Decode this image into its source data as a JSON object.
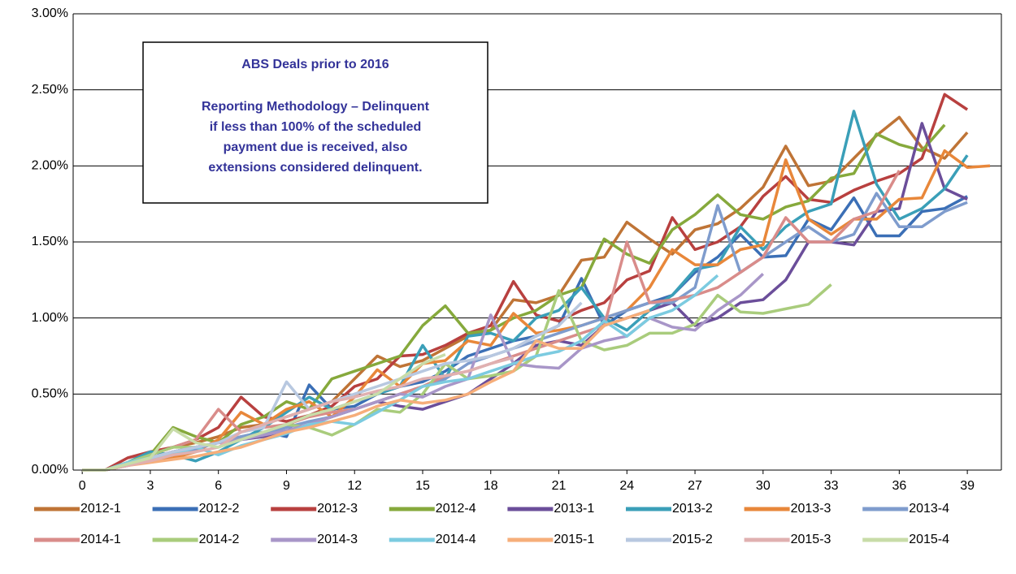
{
  "chart_data": {
    "type": "line",
    "annotation": {
      "title": "ABS Deals prior to 2016",
      "lines": [
        "Reporting Methodology – Delinquent",
        "if less than 100% of the scheduled",
        "payment due is received, also",
        "extensions considered delinquent."
      ]
    },
    "x": [
      0,
      1,
      2,
      3,
      4,
      5,
      6,
      7,
      8,
      9,
      10,
      11,
      12,
      13,
      14,
      15,
      16,
      17,
      18,
      19,
      20,
      21,
      22,
      23,
      24,
      25,
      26,
      27,
      28,
      29,
      30,
      31,
      32,
      33,
      34,
      35,
      36,
      37,
      38,
      39,
      40
    ],
    "xlim": [
      -0.4,
      40.5
    ],
    "xticks": [
      0,
      3,
      6,
      9,
      12,
      15,
      18,
      21,
      24,
      27,
      30,
      33,
      36,
      39
    ],
    "ylim": [
      0,
      3
    ],
    "yticks": [
      {
        "value": 0,
        "label": "0.00%"
      },
      {
        "value": 0.5,
        "label": "0.50%"
      },
      {
        "value": 1,
        "label": "1.00%"
      },
      {
        "value": 1.5,
        "label": "1.50%"
      },
      {
        "value": 2,
        "label": "2.00%"
      },
      {
        "value": 2.5,
        "label": "2.50%"
      },
      {
        "value": 3,
        "label": "3.00%"
      }
    ],
    "grid": true,
    "series": [
      {
        "name": "2012-1",
        "color": "#bf7436",
        "values": [
          0,
          0,
          0.05,
          0.1,
          0.15,
          0.18,
          0.22,
          0.28,
          0.3,
          0.35,
          0.4,
          0.45,
          0.6,
          0.75,
          0.68,
          0.72,
          0.8,
          0.88,
          0.92,
          1.12,
          1.1,
          1.15,
          1.38,
          1.4,
          1.63,
          1.52,
          1.42,
          1.58,
          1.62,
          1.72,
          1.86,
          2.13,
          1.87,
          1.9,
          2.05,
          2.2,
          2.32,
          2.12,
          2.05,
          2.22,
          null
        ]
      },
      {
        "name": "2012-2",
        "color": "#3b6fb6",
        "values": [
          0,
          0,
          0.04,
          0.08,
          0.12,
          0.15,
          0.18,
          0.22,
          0.25,
          0.22,
          0.56,
          0.4,
          0.42,
          0.5,
          0.55,
          0.58,
          0.65,
          0.75,
          0.8,
          0.85,
          0.88,
          0.95,
          1.26,
          0.95,
          1.05,
          1.1,
          1.15,
          1.3,
          1.4,
          1.55,
          1.4,
          1.41,
          1.65,
          1.58,
          1.79,
          1.54,
          1.54,
          1.7,
          1.72,
          1.8,
          null
        ]
      },
      {
        "name": "2012-3",
        "color": "#b8403f",
        "values": [
          0,
          0,
          0.08,
          0.12,
          0.15,
          0.2,
          0.28,
          0.48,
          0.35,
          0.32,
          0.36,
          0.42,
          0.55,
          0.6,
          0.75,
          0.76,
          0.82,
          0.9,
          0.95,
          1.24,
          1.02,
          0.98,
          1.05,
          1.1,
          1.25,
          1.31,
          1.66,
          1.45,
          1.5,
          1.6,
          1.8,
          1.93,
          1.78,
          1.76,
          1.84,
          1.9,
          1.95,
          2.05,
          2.47,
          2.37,
          null
        ]
      },
      {
        "name": "2012-4",
        "color": "#86a93c",
        "values": [
          0,
          0,
          0.05,
          0.1,
          0.28,
          0.22,
          0.18,
          0.3,
          0.35,
          0.45,
          0.4,
          0.6,
          0.65,
          0.7,
          0.75,
          0.95,
          1.08,
          0.9,
          0.92,
          1.0,
          1.05,
          1.15,
          1.2,
          1.52,
          1.42,
          1.36,
          1.58,
          1.68,
          1.81,
          1.68,
          1.65,
          1.73,
          1.77,
          1.92,
          1.95,
          2.21,
          2.14,
          2.1,
          2.27,
          null,
          null
        ]
      },
      {
        "name": "2013-1",
        "color": "#6b4e9a",
        "values": [
          0,
          0,
          0.03,
          0.08,
          0.12,
          0.15,
          0.18,
          0.2,
          0.22,
          0.25,
          0.3,
          0.35,
          0.4,
          0.45,
          0.42,
          0.4,
          0.45,
          0.5,
          0.6,
          0.7,
          0.82,
          0.85,
          0.82,
          0.95,
          1.0,
          1.05,
          1.1,
          0.95,
          1.0,
          1.1,
          1.12,
          1.25,
          1.5,
          1.5,
          1.48,
          1.7,
          1.72,
          2.28,
          1.85,
          1.78,
          null
        ]
      },
      {
        "name": "2013-2",
        "color": "#3a9fb8",
        "values": [
          0,
          0,
          0.05,
          0.12,
          0.1,
          0.06,
          0.12,
          0.2,
          0.28,
          0.38,
          0.48,
          0.4,
          0.45,
          0.5,
          0.55,
          0.82,
          0.6,
          0.88,
          0.9,
          0.85,
          1.0,
          1.05,
          1.2,
          1.0,
          0.92,
          1.05,
          1.15,
          1.32,
          1.35,
          1.6,
          1.45,
          1.6,
          1.7,
          1.75,
          2.36,
          1.88,
          1.65,
          1.72,
          1.85,
          2.07,
          null
        ]
      },
      {
        "name": "2013-3",
        "color": "#e8873a",
        "values": [
          0,
          0,
          0.04,
          0.06,
          0.08,
          0.12,
          0.2,
          0.38,
          0.3,
          0.4,
          0.45,
          0.35,
          0.48,
          0.66,
          0.55,
          0.7,
          0.72,
          0.85,
          0.82,
          1.03,
          0.9,
          0.92,
          0.95,
          1.0,
          1.05,
          1.2,
          1.45,
          1.35,
          1.35,
          1.45,
          1.48,
          2.04,
          1.65,
          1.55,
          1.65,
          1.65,
          1.78,
          1.79,
          2.1,
          1.99,
          2.0
        ]
      },
      {
        "name": "2013-4",
        "color": "#7f9ccd",
        "values": [
          0,
          0,
          0.03,
          0.06,
          0.1,
          0.14,
          0.18,
          0.22,
          0.24,
          0.28,
          0.32,
          0.35,
          0.4,
          0.45,
          0.5,
          0.55,
          0.6,
          0.7,
          0.75,
          0.8,
          0.85,
          0.9,
          0.95,
          1.0,
          1.05,
          1.1,
          1.1,
          1.2,
          1.74,
          1.3,
          1.4,
          1.5,
          1.6,
          1.5,
          1.55,
          1.82,
          1.6,
          1.6,
          1.7,
          1.76,
          null
        ]
      },
      {
        "name": "2014-1",
        "color": "#d98c8a",
        "values": [
          0,
          0,
          0.04,
          0.1,
          0.15,
          0.2,
          0.4,
          0.25,
          0.28,
          0.3,
          0.35,
          0.38,
          0.4,
          0.45,
          0.5,
          0.55,
          0.62,
          0.65,
          0.7,
          0.75,
          0.8,
          0.85,
          0.9,
          0.95,
          1.5,
          1.1,
          1.12,
          1.15,
          1.2,
          1.3,
          1.4,
          1.66,
          1.5,
          1.5,
          1.65,
          1.7,
          1.97,
          null,
          null,
          null,
          null
        ]
      },
      {
        "name": "2014-2",
        "color": "#a9cc7c",
        "values": [
          0,
          0,
          0.05,
          0.1,
          0.15,
          0.15,
          0.18,
          0.2,
          0.25,
          0.3,
          0.28,
          0.23,
          0.3,
          0.4,
          0.38,
          0.5,
          0.7,
          0.6,
          0.62,
          0.65,
          0.75,
          1.18,
          0.85,
          0.79,
          0.82,
          0.9,
          0.9,
          0.96,
          1.15,
          1.04,
          1.03,
          1.06,
          1.09,
          1.22,
          null,
          null,
          null,
          null,
          null,
          null,
          null
        ]
      },
      {
        "name": "2014-3",
        "color": "#a896c8",
        "values": [
          0,
          0,
          0.04,
          0.08,
          0.12,
          0.15,
          0.18,
          0.2,
          0.23,
          0.26,
          0.3,
          0.35,
          0.4,
          0.45,
          0.5,
          0.48,
          0.55,
          0.6,
          1.02,
          0.7,
          0.68,
          0.67,
          0.8,
          0.85,
          0.88,
          1.0,
          0.94,
          0.92,
          1.05,
          1.15,
          1.29,
          null,
          null,
          null,
          null,
          null,
          null,
          null,
          null,
          null,
          null
        ]
      },
      {
        "name": "2014-4",
        "color": "#7ccbe0",
        "values": [
          0,
          0,
          0.05,
          0.08,
          0.1,
          0.15,
          0.1,
          0.16,
          0.2,
          0.24,
          0.3,
          0.32,
          0.3,
          0.38,
          0.46,
          0.55,
          0.58,
          0.6,
          0.65,
          0.7,
          0.75,
          0.78,
          0.85,
          0.98,
          0.88,
          1.0,
          1.05,
          1.15,
          1.28,
          null,
          null,
          null,
          null,
          null,
          null,
          null,
          null,
          null,
          null,
          null,
          null
        ]
      },
      {
        "name": "2015-1",
        "color": "#f6ae7a",
        "values": [
          0,
          0,
          0.03,
          0.05,
          0.07,
          0.09,
          0.12,
          0.15,
          0.2,
          0.25,
          0.28,
          0.32,
          0.36,
          0.42,
          0.46,
          0.44,
          0.46,
          0.5,
          0.58,
          0.65,
          0.85,
          0.8,
          0.8,
          0.95,
          1.0,
          1.05,
          null,
          null,
          null,
          null,
          null,
          null,
          null,
          null,
          null,
          null,
          null,
          null,
          null,
          null,
          null
        ]
      },
      {
        "name": "2015-2",
        "color": "#b8c8e0",
        "values": [
          0,
          0,
          0.04,
          0.08,
          0.12,
          0.15,
          0.18,
          0.25,
          0.28,
          0.58,
          0.4,
          0.45,
          0.5,
          0.55,
          0.6,
          0.65,
          0.7,
          0.72,
          0.75,
          0.8,
          0.88,
          0.95,
          1.1,
          null,
          null,
          null,
          null,
          null,
          null,
          null,
          null,
          null,
          null,
          null,
          null,
          null,
          null,
          null,
          null,
          null,
          null
        ]
      },
      {
        "name": "2015-3",
        "color": "#e0b0b0",
        "values": [
          0,
          0,
          0.03,
          0.06,
          0.1,
          0.12,
          0.15,
          0.25,
          0.3,
          0.35,
          0.4,
          0.45,
          0.48,
          0.52,
          0.55,
          0.6,
          0.62,
          0.65,
          0.7,
          0.74,
          null,
          null,
          null,
          null,
          null,
          null,
          null,
          null,
          null,
          null,
          null,
          null,
          null,
          null,
          null,
          null,
          null,
          null,
          null,
          null,
          null
        ]
      },
      {
        "name": "2015-4",
        "color": "#c8dca8",
        "values": [
          0,
          0,
          0.04,
          0.08,
          0.27,
          0.18,
          0.15,
          0.2,
          0.25,
          0.3,
          0.36,
          0.4,
          0.45,
          0.5,
          0.6,
          0.7,
          0.76,
          null,
          null,
          null,
          null,
          null,
          null,
          null,
          null,
          null,
          null,
          null,
          null,
          null,
          null,
          null,
          null,
          null,
          null,
          null,
          null,
          null,
          null,
          null,
          null
        ]
      }
    ]
  }
}
